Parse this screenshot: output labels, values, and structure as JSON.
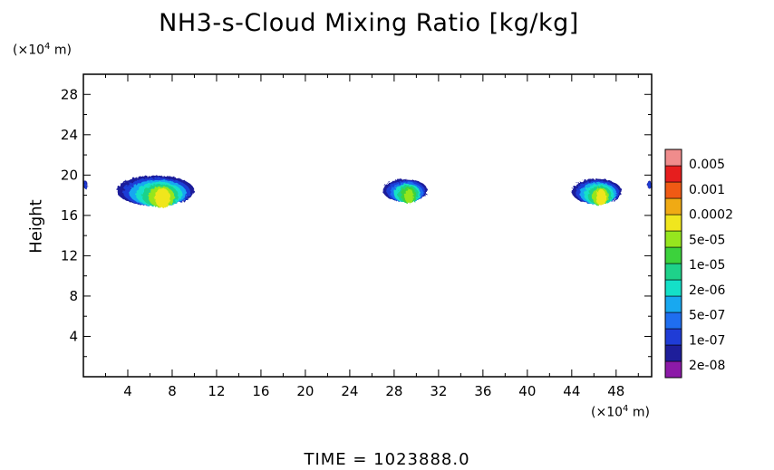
{
  "title": "NH3-s-Cloud Mixing Ratio [kg/kg]",
  "time_label": "TIME  =  1023888.0",
  "y_unit": {
    "prefix": "(×10",
    "exp": "4",
    "suffix": " m)"
  },
  "x_unit": {
    "prefix": "(×10",
    "exp": "4",
    "suffix": " m)"
  },
  "colors": {
    "levels": [
      "#8c1aa8",
      "#1e1e9a",
      "#1f3cd6",
      "#1f6ef0",
      "#18a8f0",
      "#14e0c8",
      "#1ed28a",
      "#3cd23c",
      "#96e61e",
      "#f0e61e",
      "#f0aa14",
      "#f05a14",
      "#e61e1e",
      "#f08c8c"
    ]
  },
  "chart_data": {
    "type": "heatmap",
    "title": "NH3-s-Cloud Mixing Ratio [kg/kg]",
    "xlabel": "",
    "ylabel": "Height",
    "xlim": [
      0,
      51.2
    ],
    "ylim": [
      0,
      30
    ],
    "xticks": [
      4,
      8,
      12,
      16,
      20,
      24,
      28,
      32,
      36,
      40,
      44,
      48
    ],
    "yticks": [
      4,
      8,
      12,
      16,
      20,
      24,
      28
    ],
    "colorbar_labels": [
      "0.005",
      "0.001",
      "0.0002",
      "5e-05",
      "1e-05",
      "2e-06",
      "5e-07",
      "1e-07",
      "2e-08"
    ],
    "clouds": [
      {
        "x_range": [
          3,
          10
        ],
        "y_range": [
          16.8,
          19.8
        ],
        "max_level": "0.0002"
      },
      {
        "x_range": [
          27,
          31
        ],
        "y_range": [
          17.2,
          19.5
        ],
        "max_level": "5e-05"
      },
      {
        "x_range": [
          44,
          48.5
        ],
        "y_range": [
          17.0,
          19.5
        ],
        "max_level": "0.0002"
      },
      {
        "x_range": [
          0,
          0.4
        ],
        "y_range": [
          18.6,
          19.4
        ],
        "max_level": "1e-07"
      },
      {
        "x_range": [
          50.8,
          51.2
        ],
        "y_range": [
          18.6,
          19.4
        ],
        "max_level": "1e-07"
      }
    ]
  }
}
